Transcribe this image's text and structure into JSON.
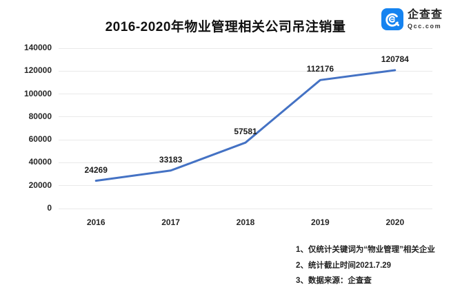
{
  "header": {
    "title": "2016-2020年物业管理相关公司吊注销量",
    "logo": {
      "brand": "企查查",
      "domain": "Qcc.com",
      "icon": "qcc-logo-icon",
      "icon_color": "#1583f0"
    }
  },
  "chart_data": {
    "type": "line",
    "title": "2016-2020年物业管理相关公司吊注销量",
    "categories": [
      "2016",
      "2017",
      "2018",
      "2019",
      "2020"
    ],
    "values": [
      24269,
      33183,
      57581,
      112176,
      120784
    ],
    "data_labels": [
      "24269",
      "33183",
      "57581",
      "112176",
      "120784"
    ],
    "xlabel": "",
    "ylabel": "",
    "ylim": [
      0,
      140000
    ],
    "yticks": [
      0,
      20000,
      40000,
      60000,
      80000,
      100000,
      120000,
      140000
    ],
    "grid": true,
    "legend": "none",
    "line_color": "#4472c4",
    "gridline_color": "#e9e9e9",
    "text_color": "#262626"
  },
  "notes": {
    "items": [
      "1、仅统计关键词为“物业管理”相关企业",
      "2、统计截止时间2021.7.29",
      "3、数据来源：企查查"
    ]
  }
}
